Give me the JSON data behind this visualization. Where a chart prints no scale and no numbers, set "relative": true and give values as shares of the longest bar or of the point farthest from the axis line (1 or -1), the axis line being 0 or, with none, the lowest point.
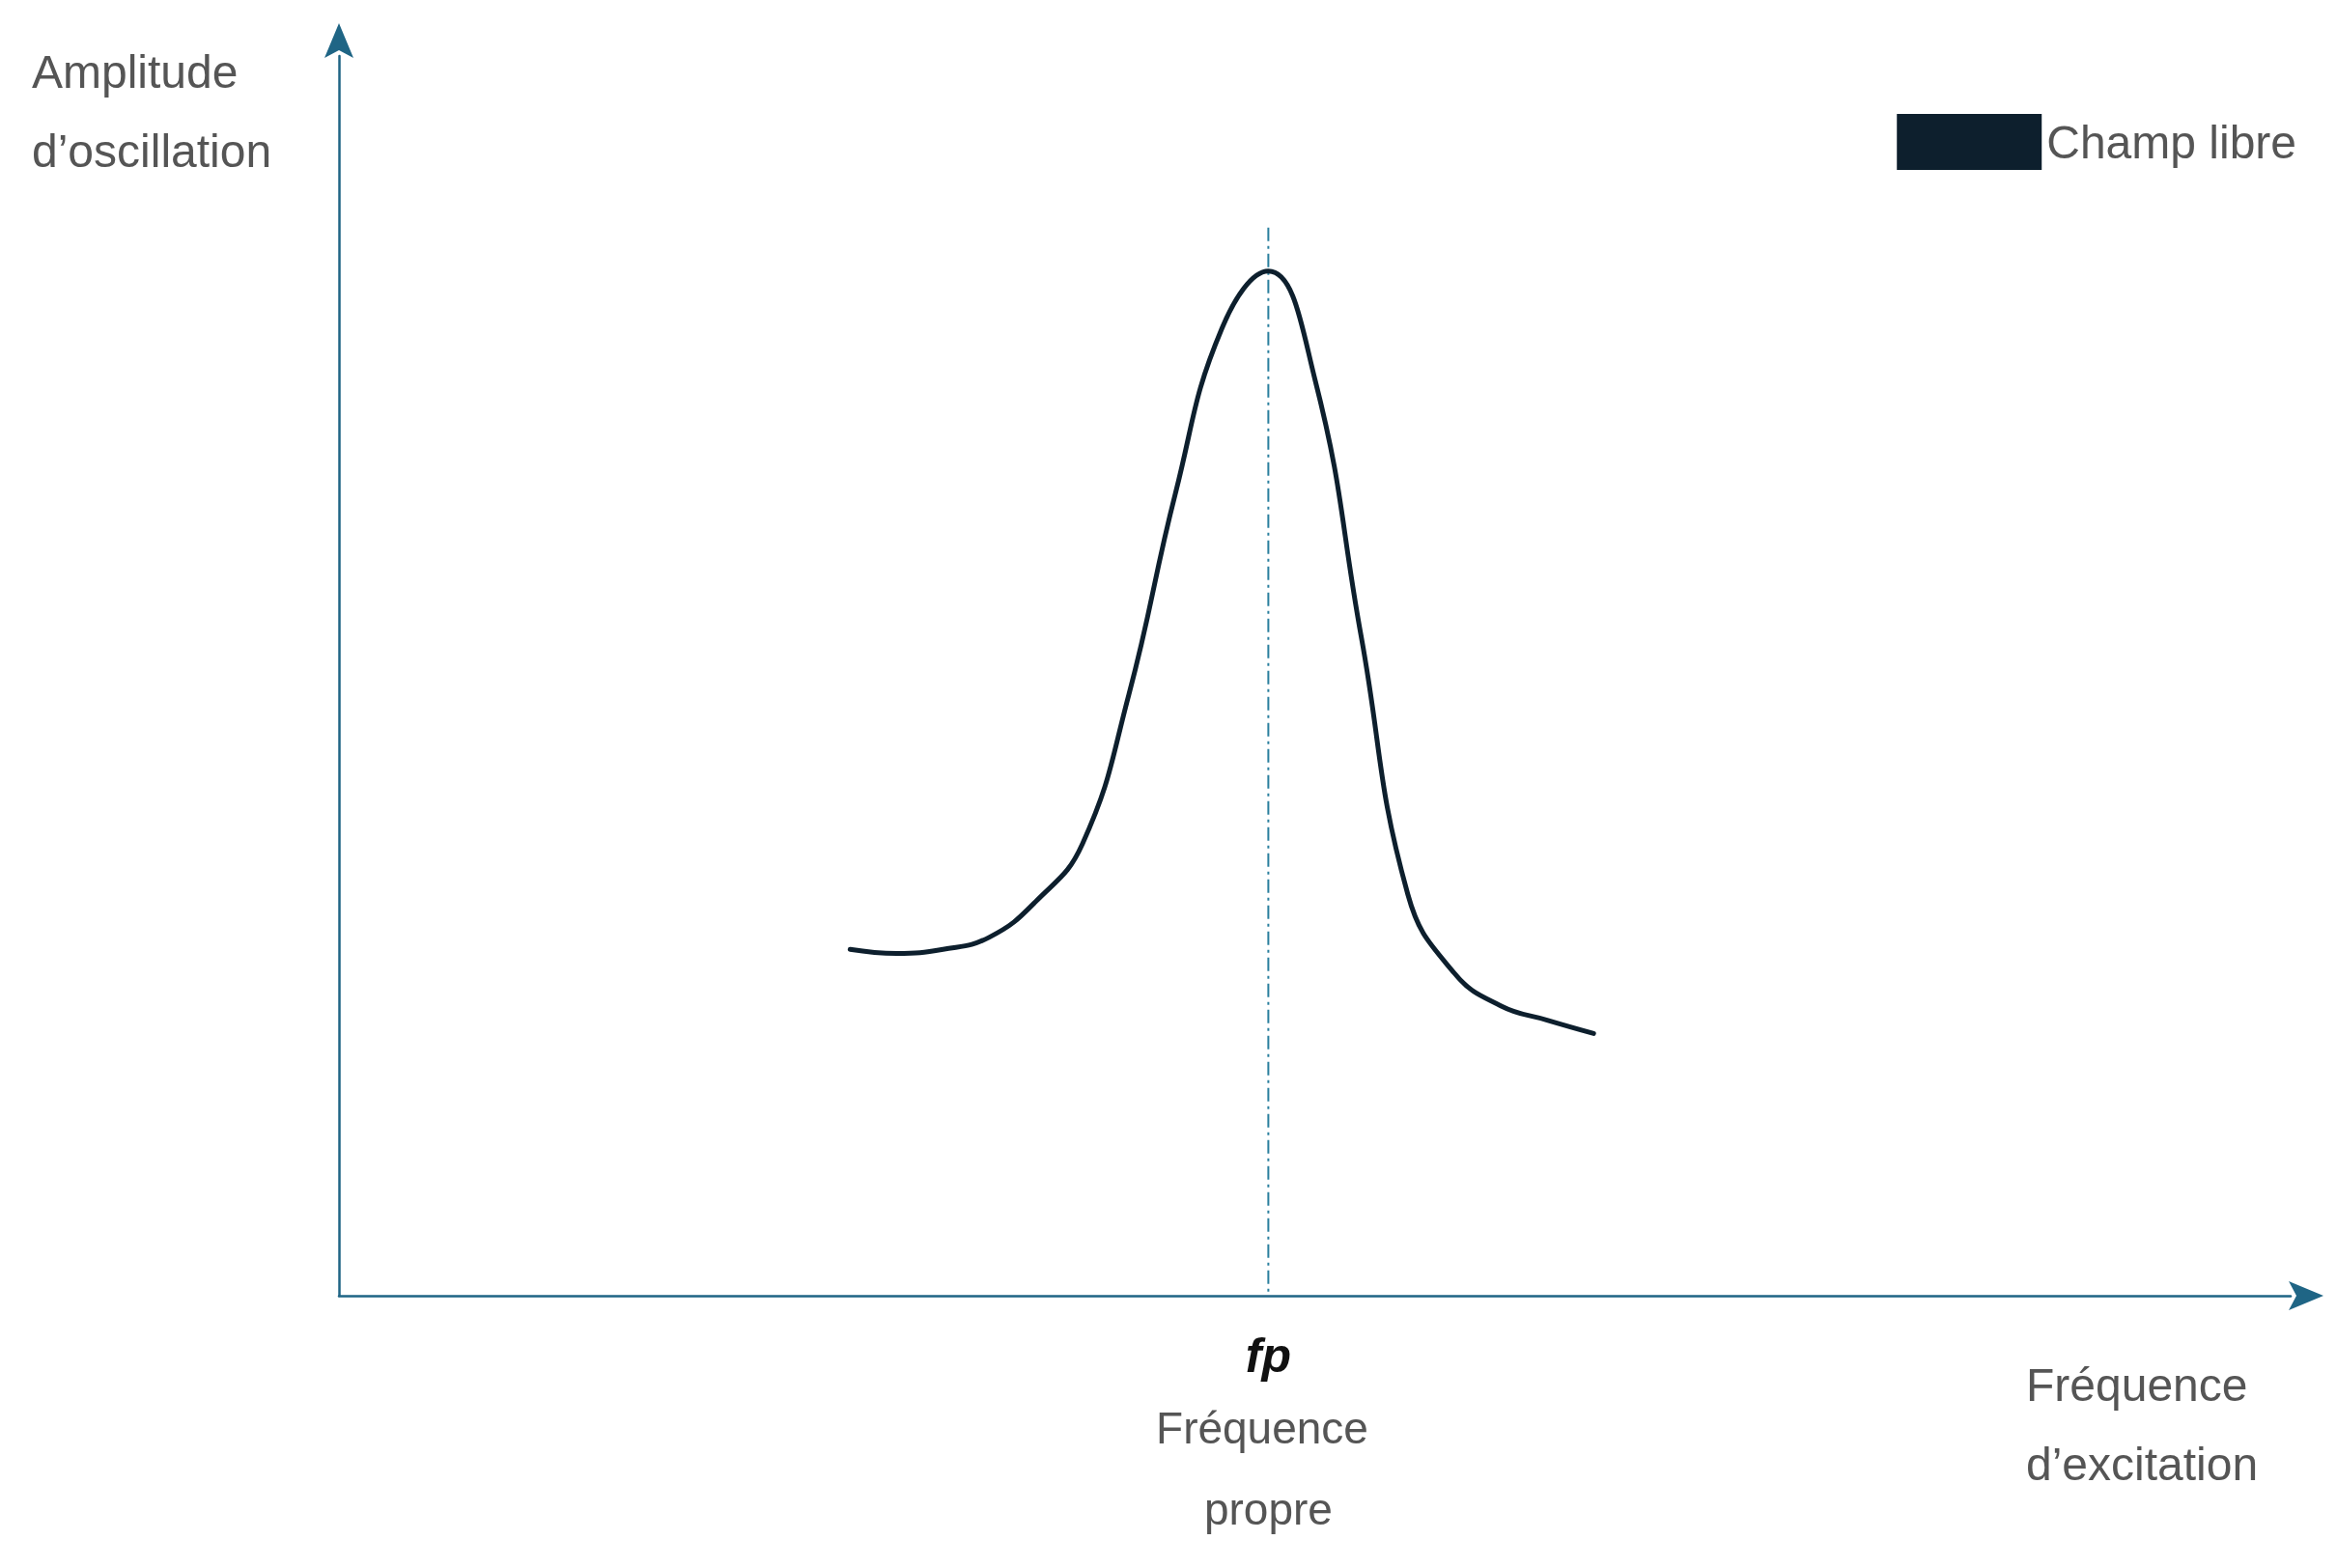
{
  "chart_data": {
    "type": "line",
    "relative": true,
    "xlabel": "Fréquence d’excitation",
    "ylabel": "Amplitude d’oscillation",
    "categories": [
      null,
      null,
      null,
      null,
      null,
      null,
      null,
      null,
      null,
      null,
      null,
      null,
      null,
      null,
      null,
      null,
      null,
      null,
      null,
      null,
      null,
      null,
      null,
      null,
      null,
      null,
      null,
      null,
      null,
      null,
      null,
      null,
      null,
      null,
      null,
      null,
      null,
      null,
      null,
      null,
      null,
      null,
      null
    ],
    "series": [
      {
        "name": "Champ libre",
        "color": "#0d1f2d",
        "values": [
          null,
          null,
          null,
          null,
          null,
          null,
          null,
          null,
          null,
          null,
          null,
          0.338,
          0.334,
          0.338,
          0.35,
          0.385,
          0.441,
          0.587,
          0.783,
          0.944,
          1.0,
          0.895,
          0.643,
          0.392,
          0.315,
          0.283,
          0.269,
          0.256,
          null,
          null,
          null,
          null,
          null,
          null,
          null,
          null,
          null,
          null,
          null,
          null,
          null,
          null,
          null
        ]
      }
    ],
    "annotations": [
      "fp",
      "Fréquence propre"
    ],
    "legend": "top right",
    "grid": false,
    "marker": "none",
    "line_style": "solid"
  }
}
